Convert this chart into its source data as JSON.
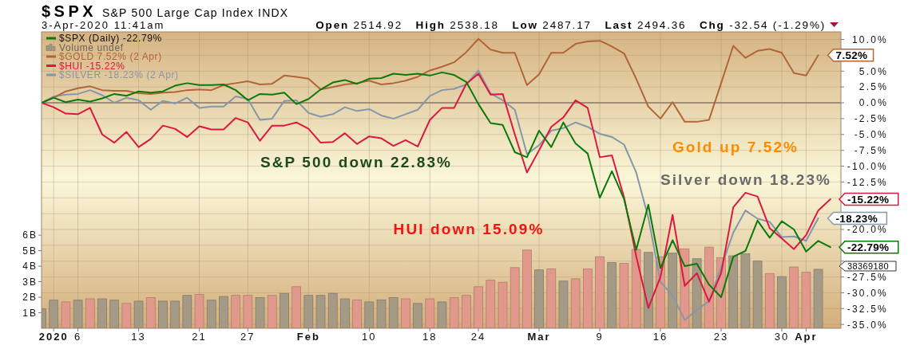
{
  "chart_data": {
    "type": "line",
    "title": "$SPX",
    "subtitle": "S&P 500 Large Cap Index INDX",
    "annotations": [
      "3-Apr-2020 11:41am",
      "Open 2514.92 High 2538.18 Low 2487.17 Last 2494.36 Chg -32.54 (-1.29%)",
      "S&P 500 down 22.83%",
      "HUI down 15.09%",
      "Gold up 7.52%",
      "Silver down 18.23%",
      "38369180"
    ],
    "categories": [
      null,
      "2020",
      null,
      "6",
      null,
      null,
      null,
      null,
      "13",
      null,
      null,
      null,
      null,
      "21",
      null,
      null,
      null,
      "27",
      null,
      null,
      null,
      null,
      "Feb",
      null,
      null,
      null,
      null,
      "10",
      null,
      null,
      null,
      null,
      "18",
      null,
      null,
      null,
      "24",
      null,
      null,
      null,
      null,
      "Mar",
      null,
      null,
      null,
      null,
      "9",
      null,
      null,
      null,
      null,
      "16",
      null,
      null,
      null,
      null,
      "23",
      null,
      null,
      null,
      null,
      "30",
      null,
      "Apr",
      null,
      null
    ],
    "series": [
      {
        "name": "$SPX (Daily) -22.79%",
        "color": "#0b7a0b",
        "values": [
          0,
          0.8,
          0.1,
          0.5,
          0.2,
          0.7,
          1.4,
          1.1,
          1.8,
          1.6,
          1.8,
          2.7,
          3.1,
          2.8,
          2.8,
          2.9,
          2.0,
          0.4,
          1.4,
          1.3,
          1.6,
          -0.2,
          0.6,
          2.1,
          3.2,
          3.6,
          3.0,
          3.8,
          3.9,
          4.6,
          4.4,
          4.6,
          4.3,
          4.8,
          4.4,
          3.3,
          -0.2,
          -3.2,
          -3.5,
          -7.8,
          -8.6,
          -4.4,
          -7.0,
          -3.1,
          -6.4,
          -8.0,
          -15.0,
          -10.8,
          -15.2,
          -23.2,
          -16.1,
          -26.1,
          -21.7,
          -25.8,
          -25.4,
          -28.7,
          -30.7,
          -24.3,
          -23.4,
          -18.6,
          -21.3,
          -18.7,
          -20.0,
          -23.5,
          -21.8,
          -22.79
        ],
        "value_labels": [
          null,
          null,
          null,
          null,
          null,
          null,
          null,
          null,
          null,
          null,
          null,
          null,
          null,
          null,
          null,
          null,
          null,
          null,
          null,
          null,
          null,
          null,
          null,
          null,
          null,
          null,
          null,
          null,
          null,
          null,
          null,
          null,
          null,
          null,
          null,
          null,
          null,
          null,
          null,
          null,
          null,
          null,
          null,
          null,
          null,
          null,
          null,
          null,
          null,
          null,
          null,
          null,
          null,
          null,
          null,
          null,
          null,
          null,
          null,
          null,
          null,
          null,
          null,
          null,
          null,
          "-22.79%"
        ]
      },
      {
        "name": "Volume undef",
        "type": "bar",
        "axis": "y2",
        "color": "#a59a86",
        "colors": [
          "#a59a86",
          "#a59a86",
          "#e0998a",
          "#a59a86",
          "#e0998a",
          "#a59a86",
          "#a59a86",
          "#e0998a",
          "#a59a86",
          "#e0998a",
          "#a59a86",
          "#a59a86",
          "#a59a86",
          "#e0998a",
          "#a59a86",
          "#a59a86",
          "#e0998a",
          "#e0998a",
          "#a59a86",
          "#e0998a",
          "#a59a86",
          "#e0998a",
          "#a59a86",
          "#a59a86",
          "#a59a86",
          "#a59a86",
          "#e0998a",
          "#a59a86",
          "#a59a86",
          "#a59a86",
          "#e0998a",
          "#a59a86",
          "#e0998a",
          "#a59a86",
          "#e0998a",
          "#e0998a",
          "#e0998a",
          "#e0998a",
          "#e0998a",
          "#e0998a",
          "#e0998a",
          "#a59a86",
          "#e0998a",
          "#a59a86",
          "#e0998a",
          "#e0998a",
          "#e0998a",
          "#a59a86",
          "#e0998a",
          "#e0998a",
          "#a59a86",
          "#e0998a",
          "#a59a86",
          "#e0998a",
          "#a59a86",
          "#e0998a",
          "#e0998a",
          "#a59a86",
          "#a59a86",
          "#a59a86",
          "#e0998a",
          "#a59a86",
          "#e0998a",
          "#e0998a",
          "#a59a86",
          null
        ],
        "values": [
          1.25,
          1.81,
          1.7,
          1.81,
          1.9,
          1.9,
          1.81,
          1.6,
          1.75,
          1.98,
          1.75,
          1.75,
          2.12,
          2.18,
          1.81,
          2.05,
          2.12,
          2.12,
          1.98,
          2.12,
          2.25,
          2.68,
          2.12,
          2.12,
          2.25,
          1.9,
          1.83,
          1.7,
          1.83,
          1.98,
          1.9,
          1.6,
          1.9,
          1.7,
          1.97,
          2.12,
          2.68,
          3.1,
          2.97,
          3.91,
          5.04,
          3.76,
          3.82,
          3.04,
          3.19,
          3.82,
          4.61,
          4.23,
          4.18,
          5.08,
          4.89,
          4.61,
          4.84,
          5.12,
          4.48,
          5.23,
          4.55,
          4.67,
          4.8,
          4.33,
          3.53,
          3.33,
          3.95,
          3.61,
          3.8,
          null
        ]
      },
      {
        "name": "$GOLD 7.52% (2 Apr)",
        "color": "#b3653a",
        "values": [
          0,
          0.8,
          1.8,
          2.3,
          2.6,
          2.0,
          1.9,
          1.9,
          1.5,
          1.4,
          1.6,
          1.7,
          2.0,
          2.1,
          2.0,
          2.8,
          3.1,
          3.4,
          2.9,
          3.0,
          4.3,
          4.1,
          3.8,
          2.1,
          2.5,
          2.9,
          3.1,
          3.5,
          2.9,
          3.1,
          3.5,
          4.1,
          5.1,
          5.7,
          6.4,
          8.0,
          10.1,
          8.4,
          7.9,
          7.9,
          2.8,
          4.5,
          7.9,
          7.9,
          9.3,
          9.7,
          9.8,
          8.9,
          7.8,
          3.8,
          -0.6,
          -2.5,
          0.1,
          -3.0,
          -3.0,
          -2.7,
          3.1,
          9.0,
          7.1,
          8.2,
          8.5,
          7.9,
          4.7,
          4.3,
          7.52,
          null
        ],
        "value_labels": [
          null,
          null,
          null,
          null,
          null,
          null,
          null,
          null,
          null,
          null,
          null,
          null,
          null,
          null,
          null,
          null,
          null,
          null,
          null,
          null,
          null,
          null,
          null,
          null,
          null,
          null,
          null,
          null,
          null,
          null,
          null,
          null,
          null,
          null,
          null,
          null,
          null,
          null,
          null,
          null,
          null,
          null,
          null,
          null,
          null,
          null,
          null,
          null,
          null,
          null,
          null,
          null,
          null,
          null,
          null,
          null,
          null,
          null,
          null,
          null,
          null,
          null,
          null,
          null,
          "7.52%",
          null
        ]
      },
      {
        "name": "$HUI -15.22%",
        "color": "#dc1840",
        "values": [
          0,
          -0.7,
          -1.7,
          -1.8,
          -0.8,
          -5.0,
          -6.3,
          -4.6,
          -7.0,
          -5.7,
          -3.6,
          -4.1,
          -5.4,
          -3.7,
          -4.2,
          -4.2,
          -2.4,
          -3.1,
          -6.0,
          -3.6,
          -3.6,
          -3.1,
          -4.1,
          -6.3,
          -6.2,
          -4.8,
          -6.5,
          -5.3,
          -5.6,
          -6.8,
          -5.9,
          -6.9,
          -2.7,
          -0.8,
          -0.8,
          3.0,
          4.6,
          1.3,
          1.4,
          -5.0,
          -11.0,
          -7.5,
          -3.8,
          -2.3,
          0.4,
          -0.8,
          -8.6,
          -8.3,
          -14.9,
          -24.2,
          -32.4,
          -27.5,
          -17.7,
          -28.9,
          -26.9,
          -31.4,
          -26.9,
          -16.5,
          -14.2,
          -14.8,
          -19.8,
          -21.4,
          -23.1,
          -20.9,
          -17.0,
          -15.22
        ],
        "value_labels": [
          null,
          null,
          null,
          null,
          null,
          null,
          null,
          null,
          null,
          null,
          null,
          null,
          null,
          null,
          null,
          null,
          null,
          null,
          null,
          null,
          null,
          null,
          null,
          null,
          null,
          null,
          null,
          null,
          null,
          null,
          null,
          null,
          null,
          null,
          null,
          null,
          null,
          null,
          null,
          null,
          null,
          null,
          null,
          null,
          null,
          null,
          null,
          null,
          null,
          null,
          null,
          null,
          null,
          null,
          null,
          null,
          null,
          null,
          null,
          null,
          null,
          null,
          null,
          null,
          null,
          "-15.22%"
        ]
      },
      {
        "name": "$SILVER -18.23% (2 Apr)",
        "color": "#8797ab",
        "values": [
          0,
          1.0,
          1.3,
          1.4,
          2.0,
          1.2,
          0.0,
          0.8,
          0.4,
          -1.1,
          0.3,
          -0.1,
          0.8,
          -0.8,
          -0.6,
          -0.6,
          1.0,
          0.6,
          -2.7,
          -2.5,
          0.3,
          0.4,
          -1.6,
          -2.2,
          -1.8,
          -0.7,
          -1.3,
          -1.0,
          -2.0,
          -2.5,
          -1.8,
          -1.1,
          1.1,
          2.0,
          2.2,
          2.9,
          5.1,
          1.5,
          0.4,
          -1.1,
          -8.1,
          -6.7,
          -4.4,
          -4.0,
          -3.1,
          -3.8,
          -4.9,
          -5.4,
          -6.6,
          -11.0,
          -18.1,
          -28.3,
          -30.4,
          -34.3,
          -32.7,
          -31.3,
          -26.0,
          -20.5,
          -17.0,
          -18.3,
          -18.8,
          -21.2,
          -21.1,
          -21.8,
          -18.23,
          null
        ],
        "value_labels": [
          null,
          null,
          null,
          null,
          null,
          null,
          null,
          null,
          null,
          null,
          null,
          null,
          null,
          null,
          null,
          null,
          null,
          null,
          null,
          null,
          null,
          null,
          null,
          null,
          null,
          null,
          null,
          null,
          null,
          null,
          null,
          null,
          null,
          null,
          null,
          null,
          null,
          null,
          null,
          null,
          null,
          null,
          null,
          null,
          null,
          null,
          null,
          null,
          null,
          null,
          null,
          null,
          null,
          null,
          null,
          null,
          null,
          null,
          null,
          null,
          null,
          null,
          null,
          null,
          "-18.23%",
          null
        ]
      }
    ],
    "ylim": [
      -35.6,
      11.2
    ],
    "yticks": [
      {
        "value": 10,
        "label": "10.0%"
      },
      {
        "value": 7.5,
        "label": null
      },
      {
        "value": 5,
        "label": "5.0%"
      },
      {
        "value": 2.5,
        "label": "2.5%"
      },
      {
        "value": 0,
        "label": "0.0%"
      },
      {
        "value": -2.5,
        "label": "-2.5%"
      },
      {
        "value": -5,
        "label": "-5.0%"
      },
      {
        "value": -7.5,
        "label": "-7.5%"
      },
      {
        "value": -10,
        "label": "-10.0%"
      },
      {
        "value": -12.5,
        "label": "-12.5%"
      },
      {
        "value": -15,
        "label": null
      },
      {
        "value": -17.5,
        "label": null
      },
      {
        "value": -20,
        "label": "-20.0%"
      },
      {
        "value": -22.5,
        "label": null
      },
      {
        "value": -25,
        "label": null
      },
      {
        "value": -27.5,
        "label": "-27.5%"
      },
      {
        "value": -30,
        "label": "-30.0%"
      },
      {
        "value": -32.5,
        "label": "-32.5%"
      },
      {
        "value": -35,
        "label": "-35.0%"
      }
    ],
    "y2lim": [
      0,
      19.1
    ],
    "y2ticks": [
      {
        "value": 1,
        "label": "1B"
      },
      {
        "value": 2,
        "label": "2B"
      },
      {
        "value": 3,
        "label": "3B"
      },
      {
        "value": 4,
        "label": "4B"
      },
      {
        "value": 5,
        "label": "5B"
      },
      {
        "value": 6,
        "label": "6B"
      }
    ],
    "ref_lines": [
      {
        "axis": "y",
        "value": 0,
        "color": "#8c7a68"
      }
    ],
    "grid": true,
    "legend": "top left"
  }
}
